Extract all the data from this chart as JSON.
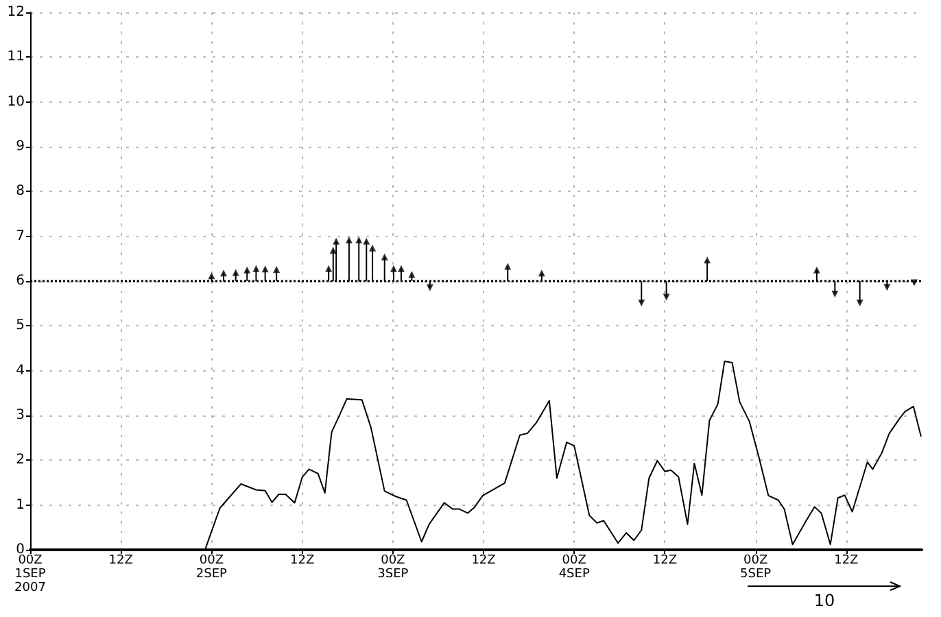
{
  "chart_data": {
    "type": "line",
    "xlim": [
      "2007-09-01T00:00",
      "2007-09-05T22:00"
    ],
    "ylim": [
      0,
      12
    ],
    "xticks": [
      {
        "value": "2007-09-01T00:00",
        "label": "00Z\n1SEP\n2007"
      },
      {
        "value": "2007-09-01T12:00",
        "label": "12Z"
      },
      {
        "value": "2007-09-02T00:00",
        "label": "00Z\n2SEP"
      },
      {
        "value": "2007-09-02T12:00",
        "label": "12Z"
      },
      {
        "value": "2007-09-03T00:00",
        "label": "00Z\n3SEP"
      },
      {
        "value": "2007-09-03T12:00",
        "label": "12Z"
      },
      {
        "value": "2007-09-04T00:00",
        "label": "00Z\n4SEP"
      },
      {
        "value": "2007-09-04T12:00",
        "label": "12Z"
      },
      {
        "value": "2007-09-05T00:00",
        "label": "00Z\n5SEP"
      },
      {
        "value": "2007-09-05T12:00",
        "label": "12Z"
      }
    ],
    "yticks": [
      0,
      1,
      2,
      3,
      4,
      5,
      6,
      7,
      8,
      9,
      10,
      11,
      12
    ],
    "grid": true,
    "marker": "none",
    "line_style": "solid",
    "series": [
      {
        "type": "line",
        "color": "#000000",
        "x": [
          "2007-09-01T23:12",
          "2007-09-02T01:06",
          "2007-09-02T02:42",
          "2007-09-02T03:54",
          "2007-09-02T05:54",
          "2007-09-02T07:06",
          "2007-09-02T08:00",
          "2007-09-02T08:54",
          "2007-09-02T09:48",
          "2007-09-02T11:00",
          "2007-09-02T12:00",
          "2007-09-02T12:54",
          "2007-09-02T14:06",
          "2007-09-02T15:00",
          "2007-09-02T15:54",
          "2007-09-02T16:54",
          "2007-09-02T17:54",
          "2007-09-02T19:54",
          "2007-09-02T21:06",
          "2007-09-02T22:54",
          "2007-09-03T00:24",
          "2007-09-03T01:48",
          "2007-09-03T03:48",
          "2007-09-03T04:48",
          "2007-09-03T06:48",
          "2007-09-03T07:54",
          "2007-09-03T08:48",
          "2007-09-03T09:54",
          "2007-09-03T10:48",
          "2007-09-03T11:54",
          "2007-09-03T14:48",
          "2007-09-03T16:48",
          "2007-09-03T17:48",
          "2007-09-03T19:00",
          "2007-09-03T20:42",
          "2007-09-03T21:42",
          "2007-09-03T23:00",
          "2007-09-04T00:00",
          "2007-09-04T02:00",
          "2007-09-04T03:00",
          "2007-09-04T03:54",
          "2007-09-04T05:48",
          "2007-09-04T06:54",
          "2007-09-04T07:54",
          "2007-09-04T08:54",
          "2007-09-04T09:54",
          "2007-09-04T11:00",
          "2007-09-04T12:00",
          "2007-09-04T12:48",
          "2007-09-04T13:48",
          "2007-09-04T15:00",
          "2007-09-04T15:54",
          "2007-09-04T16:54",
          "2007-09-04T17:54",
          "2007-09-04T19:00",
          "2007-09-04T19:54",
          "2007-09-04T20:54",
          "2007-09-04T21:54",
          "2007-09-04T23:12",
          "2007-09-05T00:30",
          "2007-09-05T01:42",
          "2007-09-05T03:00",
          "2007-09-05T03:48",
          "2007-09-05T04:54",
          "2007-09-05T06:36",
          "2007-09-05T07:48",
          "2007-09-05T08:42",
          "2007-09-05T09:54",
          "2007-09-05T10:54",
          "2007-09-05T11:48",
          "2007-09-05T12:48",
          "2007-09-05T14:48",
          "2007-09-05T15:30",
          "2007-09-05T16:42",
          "2007-09-05T17:42",
          "2007-09-05T19:06",
          "2007-09-05T19:48",
          "2007-09-05T20:54",
          "2007-09-05T21:54"
        ],
        "values": [
          0.03,
          0.93,
          1.24,
          1.47,
          1.34,
          1.32,
          1.06,
          1.24,
          1.24,
          1.05,
          1.62,
          1.8,
          1.7,
          1.27,
          2.63,
          2.99,
          3.37,
          3.35,
          2.73,
          1.31,
          1.19,
          1.11,
          0.18,
          0.57,
          1.05,
          0.91,
          0.91,
          0.82,
          0.95,
          1.21,
          1.49,
          2.56,
          2.6,
          2.84,
          3.33,
          1.6,
          2.4,
          2.32,
          0.77,
          0.6,
          0.65,
          0.15,
          0.38,
          0.21,
          0.44,
          1.6,
          1.99,
          1.75,
          1.78,
          1.63,
          0.57,
          1.93,
          1.22,
          2.89,
          3.25,
          4.21,
          4.18,
          3.3,
          2.86,
          2.03,
          1.21,
          1.11,
          0.91,
          0.12,
          0.62,
          0.96,
          0.82,
          0.12,
          1.16,
          1.22,
          0.85,
          1.96,
          1.8,
          2.16,
          2.6,
          2.94,
          3.09,
          3.2,
          2.53
        ]
      },
      {
        "type": "scatter",
        "marker": "triangle",
        "color": "#000000",
        "errors": [
          [
            6,
            6.12
          ],
          [
            6,
            6.18
          ],
          [
            6,
            6.19
          ],
          [
            6,
            6.25
          ],
          [
            6,
            6.28
          ],
          [
            6,
            6.27
          ],
          [
            6,
            6.26
          ],
          [
            6,
            6.28
          ],
          [
            6,
            6.69
          ],
          [
            6,
            6.89
          ],
          [
            6,
            6.92
          ],
          [
            6,
            6.92
          ],
          [
            6,
            6.89
          ],
          [
            6,
            6.74
          ],
          [
            6,
            6.54
          ],
          [
            6,
            6.28
          ],
          [
            6,
            6.28
          ],
          [
            6,
            6.15
          ],
          [
            5.85,
            6
          ],
          [
            6,
            6.33
          ],
          [
            6,
            6.18
          ],
          [
            5.51,
            6
          ],
          [
            5.64,
            6
          ],
          [
            6,
            6.47
          ],
          [
            6,
            6.25
          ],
          [
            5.71,
            6
          ],
          [
            5.51,
            6
          ],
          [
            5.86,
            6
          ],
          [
            5.96,
            6
          ]
        ],
        "x": [
          "2007-09-02T00:00",
          "2007-09-02T01:36",
          "2007-09-02T03:12",
          "2007-09-02T04:42",
          "2007-09-02T05:54",
          "2007-09-02T07:06",
          "2007-09-02T08:36",
          "2007-09-02T15:30",
          "2007-09-02T16:06",
          "2007-09-02T16:30",
          "2007-09-02T18:12",
          "2007-09-02T19:30",
          "2007-09-02T20:30",
          "2007-09-02T21:18",
          "2007-09-02T22:54",
          "2007-09-03T00:06",
          "2007-09-03T01:06",
          "2007-09-03T02:30",
          "2007-09-03T04:54",
          "2007-09-03T15:12",
          "2007-09-03T19:42",
          "2007-09-04T08:54",
          "2007-09-04T12:12",
          "2007-09-04T17:36",
          "2007-09-05T08:06",
          "2007-09-05T10:30",
          "2007-09-05T13:48",
          "2007-09-05T17:24",
          "2007-09-05T21:00"
        ],
        "values": [
          6.12,
          6.18,
          6.19,
          6.25,
          6.28,
          6.27,
          6.26,
          6.28,
          6.69,
          6.89,
          6.92,
          6.92,
          6.89,
          6.74,
          6.54,
          6.28,
          6.28,
          6.15,
          5.85,
          6.33,
          6.18,
          5.51,
          5.64,
          6.47,
          6.25,
          5.71,
          5.51,
          5.86,
          5.96
        ]
      }
    ],
    "ref_lines": [
      {
        "axis": "y",
        "value": 6,
        "line_style": "dotted",
        "color": "#000000"
      }
    ],
    "annotations": [
      "10"
    ]
  }
}
